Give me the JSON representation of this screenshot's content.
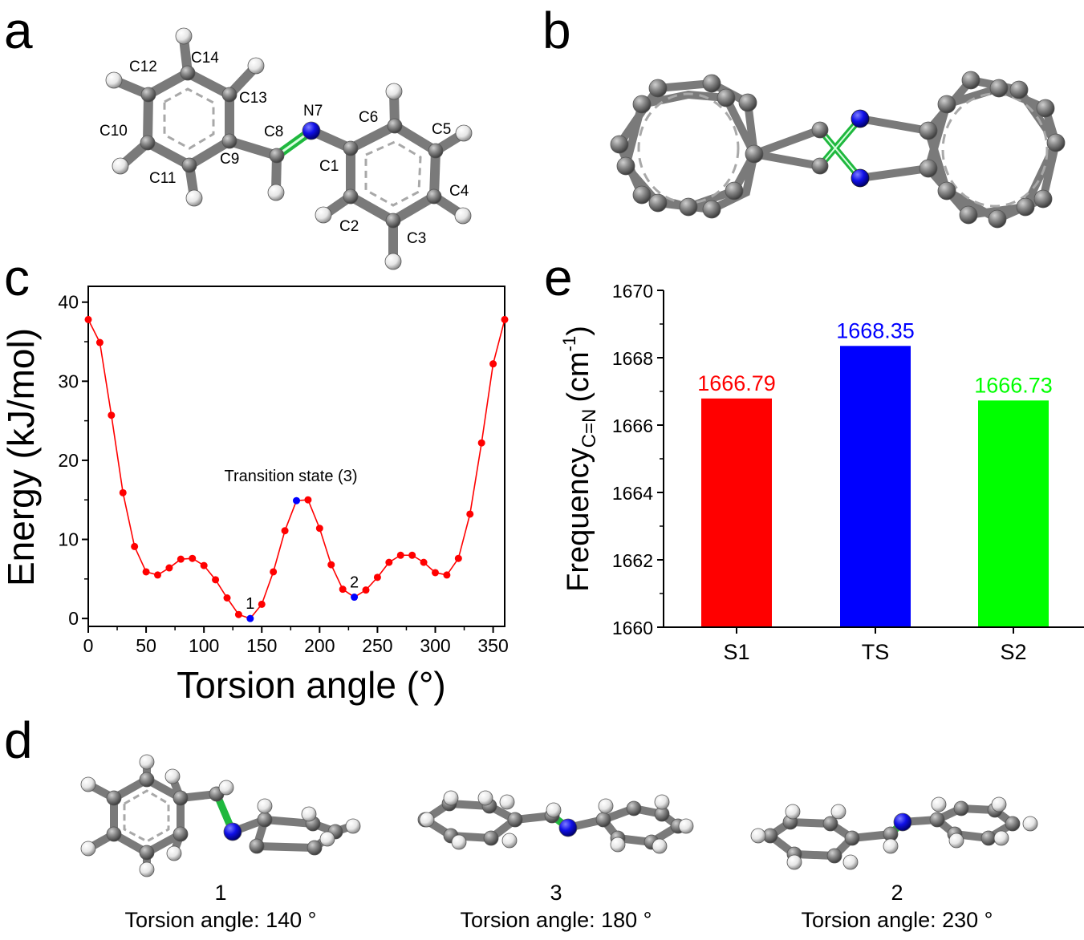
{
  "panels": {
    "a": "a",
    "b": "b",
    "c": "c",
    "d": "d",
    "e": "e"
  },
  "molecule_a": {
    "atom_labels": [
      "C12",
      "C14",
      "C13",
      "C10",
      "C9",
      "C11",
      "C8",
      "N7",
      "C6",
      "C5",
      "C1",
      "C4",
      "C2",
      "C3"
    ]
  },
  "chart_data": [
    {
      "id": "c",
      "type": "line",
      "title": "",
      "xlabel": "Torsion angle (°)",
      "ylabel": "Energy (kJ/mol)",
      "xlim": [
        0,
        360
      ],
      "ylim": [
        -1,
        42
      ],
      "x_ticks": [
        0,
        50,
        100,
        150,
        200,
        250,
        300,
        350
      ],
      "y_ticks": [
        0,
        10,
        20,
        30,
        40
      ],
      "series": [
        {
          "name": "Energy",
          "color": "#ff0000",
          "x": [
            0,
            10,
            20,
            30,
            40,
            50,
            60,
            70,
            80,
            90,
            100,
            110,
            120,
            130,
            140,
            150,
            160,
            170,
            180,
            190,
            200,
            210,
            220,
            230,
            240,
            250,
            260,
            270,
            280,
            290,
            300,
            310,
            320,
            330,
            340,
            350,
            360
          ],
          "y": [
            37.8,
            34.9,
            25.7,
            15.9,
            9.1,
            5.9,
            5.5,
            6.4,
            7.5,
            7.6,
            6.7,
            4.9,
            2.6,
            0.5,
            0.0,
            1.8,
            5.9,
            11.1,
            14.9,
            15.0,
            11.4,
            6.8,
            3.7,
            2.7,
            3.6,
            5.2,
            7.1,
            8.0,
            8.0,
            7.1,
            5.8,
            5.5,
            7.6,
            13.2,
            22.2,
            32.2,
            37.8
          ]
        }
      ],
      "highlight_points": [
        {
          "x": 140,
          "y": 0.0,
          "label": "1",
          "color": "#0000ff"
        },
        {
          "x": 180,
          "y": 14.9,
          "label": "",
          "color": "#0000ff"
        },
        {
          "x": 230,
          "y": 2.7,
          "label": "2",
          "color": "#0000ff"
        }
      ],
      "annotations": [
        {
          "text": "Transition state (3)",
          "x": 180,
          "y": 14.9
        }
      ]
    },
    {
      "id": "e",
      "type": "bar",
      "title": "",
      "xlabel": "",
      "ylabel_main": "Frequency",
      "ylabel_sub": "C=N",
      "ylabel_unit": "(cm",
      "ylabel_sup": "-1",
      "ylabel_close": ")",
      "ylim": [
        1660,
        1670
      ],
      "y_ticks": [
        1660,
        1662,
        1664,
        1666,
        1668,
        1670
      ],
      "categories": [
        "S1",
        "TS",
        "S2"
      ],
      "values": [
        1666.79,
        1668.35,
        1666.73
      ],
      "value_labels": [
        "1666.79",
        "1668.35",
        "1666.73"
      ],
      "colors": [
        "#ff0000",
        "#0000ff",
        "#00ff00"
      ]
    }
  ],
  "conformers": [
    {
      "number": "1",
      "caption": "Torsion angle: 140 °"
    },
    {
      "number": "3",
      "caption": "Torsion angle: 180 °"
    },
    {
      "number": "2",
      "caption": "Torsion angle: 230 °"
    }
  ],
  "colors": {
    "carbon": "#808080",
    "hydrogen": "#ffffff",
    "nitrogen": "#0000ff",
    "double_bond": "#22cc44"
  }
}
